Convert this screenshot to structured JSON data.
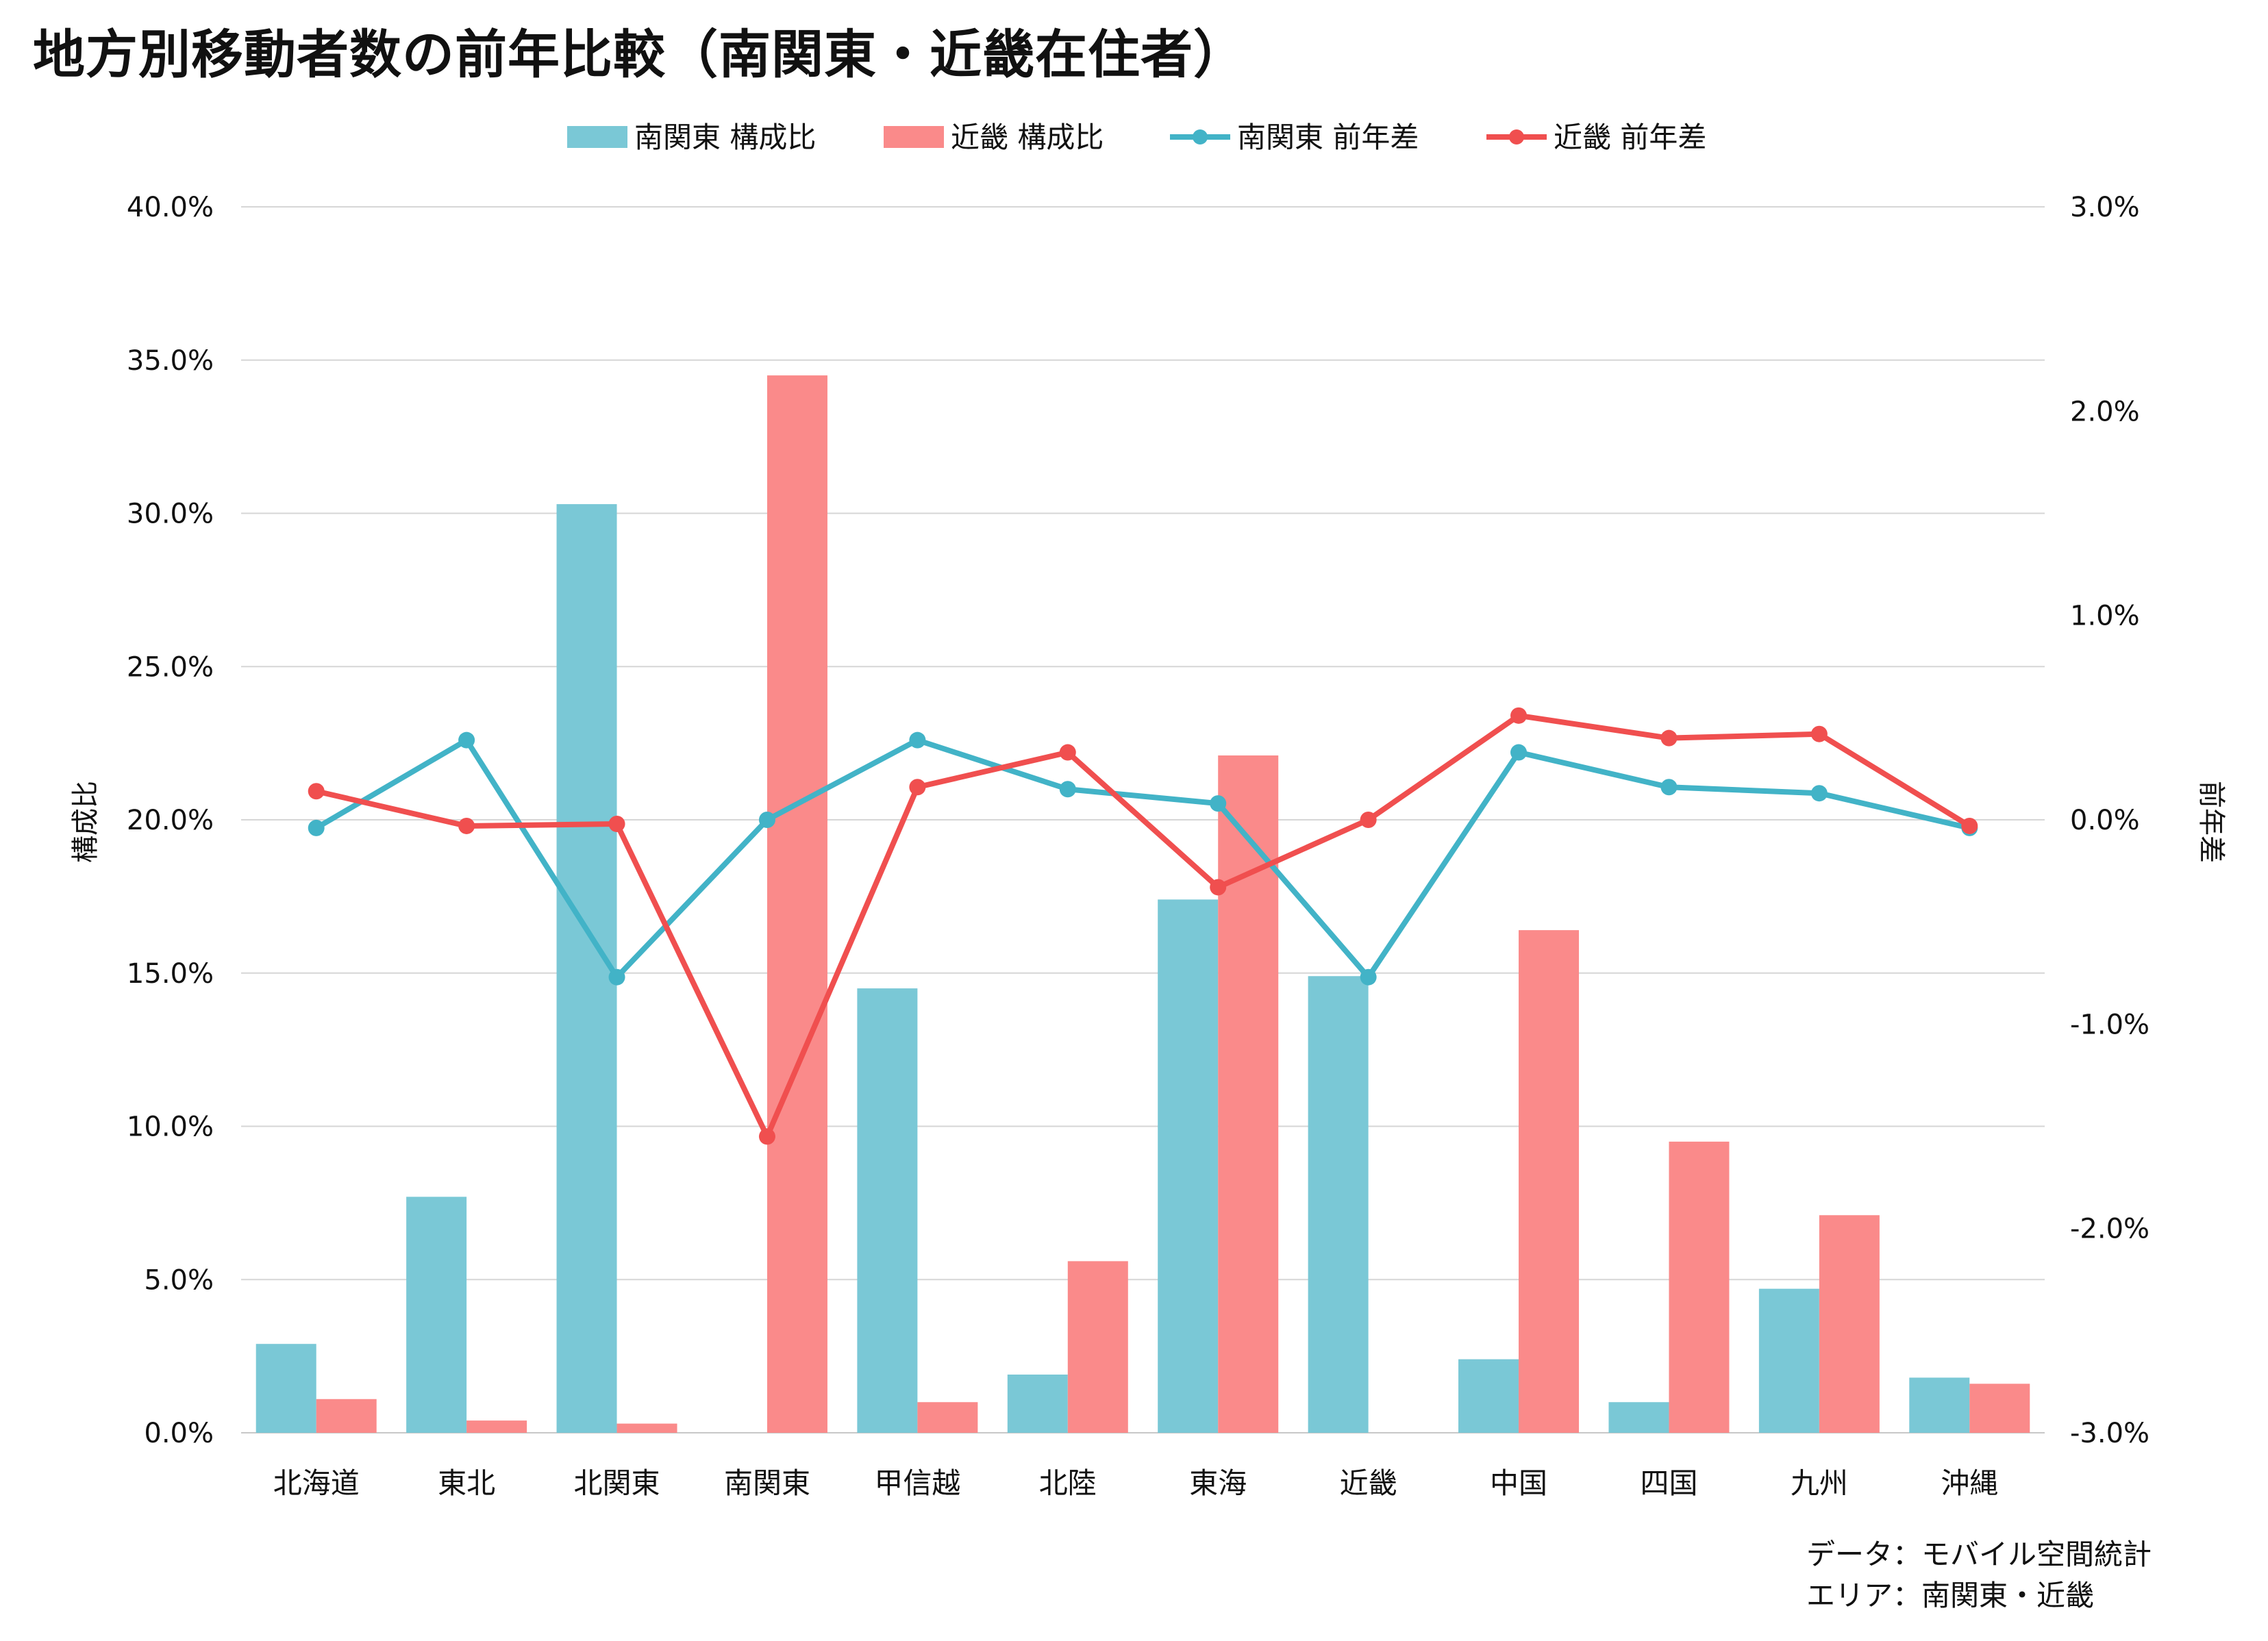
{
  "title": "地方別移動者数の前年比較（南関東・近畿在住者）",
  "source": {
    "line1": "データ：モバイル空間統計",
    "line2": "エリア：南関東・近畿"
  },
  "colors": {
    "bar_minami": "#7ac8d6",
    "bar_kinki": "#fa8a8a",
    "line_minami": "#42b3c7",
    "line_kinki": "#f04f4f",
    "grid": "#d6d6d6"
  },
  "chart_data": {
    "type": "bar",
    "categories": [
      "北海道",
      "東北",
      "北関東",
      "南関東",
      "甲信越",
      "北陸",
      "東海",
      "近畿",
      "中国",
      "四国",
      "九州",
      "沖縄"
    ],
    "y_left": {
      "label": "構成比",
      "ylim": [
        0,
        40
      ],
      "ticks": [
        0,
        5,
        10,
        15,
        20,
        25,
        30,
        35,
        40
      ],
      "tick_labels": [
        "0.0%",
        "5.0%",
        "10.0%",
        "15.0%",
        "20.0%",
        "25.0%",
        "30.0%",
        "35.0%",
        "40.0%"
      ]
    },
    "y_right": {
      "label": "前年差",
      "ylim": [
        -3,
        3
      ],
      "ticks": [
        -3,
        -2,
        -1,
        0,
        1,
        2,
        3
      ],
      "tick_labels": [
        "-3.0%",
        "-2.0%",
        "-1.0%",
        "0.0%",
        "1.0%",
        "2.0%",
        "3.0%"
      ]
    },
    "grid": true,
    "legend_position": "top-center",
    "series": [
      {
        "name": "南関東 構成比",
        "kind": "bar",
        "axis": "left",
        "values": [
          2.9,
          7.7,
          30.3,
          0.0,
          14.5,
          1.9,
          17.4,
          14.9,
          2.4,
          1.0,
          4.7,
          1.8
        ]
      },
      {
        "name": "近畿 構成比",
        "kind": "bar",
        "axis": "left",
        "values": [
          1.1,
          0.4,
          0.3,
          34.5,
          1.0,
          5.6,
          22.1,
          0.0,
          16.4,
          9.5,
          7.1,
          1.6
        ]
      },
      {
        "name": "南関東 前年差",
        "kind": "line",
        "axis": "right",
        "values": [
          -0.04,
          0.39,
          -0.77,
          0.0,
          0.39,
          0.15,
          0.08,
          -0.77,
          0.33,
          0.16,
          0.13,
          -0.04
        ]
      },
      {
        "name": "近畿 前年差",
        "kind": "line",
        "axis": "right",
        "values": [
          0.14,
          -0.03,
          -0.02,
          -1.55,
          0.16,
          0.33,
          -0.33,
          0.0,
          0.51,
          0.4,
          0.42,
          -0.03
        ]
      }
    ]
  }
}
